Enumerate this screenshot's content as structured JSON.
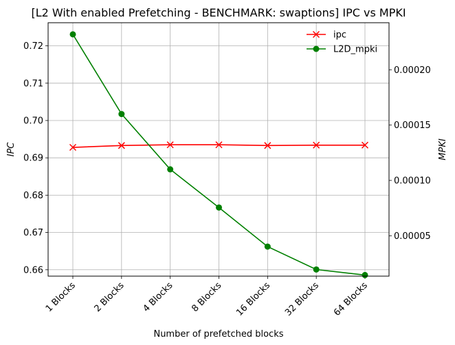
{
  "chart_data": {
    "type": "line",
    "title": "[L2 With enabled Prefetching - BENCHMARK: swaptions]  IPC vs MPKI",
    "xlabel": "Number of prefetched blocks",
    "ylabel_left": "IPC",
    "ylabel_right": "MPKI",
    "categories": [
      "1 Blocks",
      "2 Blocks",
      "4 Blocks",
      "8 Blocks",
      "16 Blocks",
      "32 Blocks",
      "64 Blocks"
    ],
    "y_left": {
      "min": 0.6583,
      "max": 0.7262,
      "ticks": [
        0.66,
        0.67,
        0.68,
        0.69,
        0.7,
        0.71,
        0.72
      ],
      "tick_labels": [
        "0.66",
        "0.67",
        "0.68",
        "0.69",
        "0.70",
        "0.71",
        "0.72"
      ]
    },
    "y_right": {
      "min": 1.35e-05,
      "max": 0.0002425,
      "ticks": [
        5e-05,
        0.0001,
        0.00015,
        0.0002
      ],
      "tick_labels": [
        "0.00005",
        "0.00010",
        "0.00015",
        "0.00020"
      ]
    },
    "grid": true,
    "legend_position": "top-right",
    "series": [
      {
        "name": "ipc",
        "axis": "left",
        "color": "#ff0000",
        "marker": "x",
        "values": [
          0.6928,
          0.6933,
          0.6935,
          0.6935,
          0.6933,
          0.6934,
          0.6934
        ]
      },
      {
        "name": "L2D_mpki",
        "axis": "right",
        "color": "#008000",
        "marker": "circle",
        "values": [
          0.000232,
          0.00016,
          0.00011,
          7.55e-05,
          4.02e-05,
          1.95e-05,
          1.45e-05
        ]
      }
    ]
  }
}
